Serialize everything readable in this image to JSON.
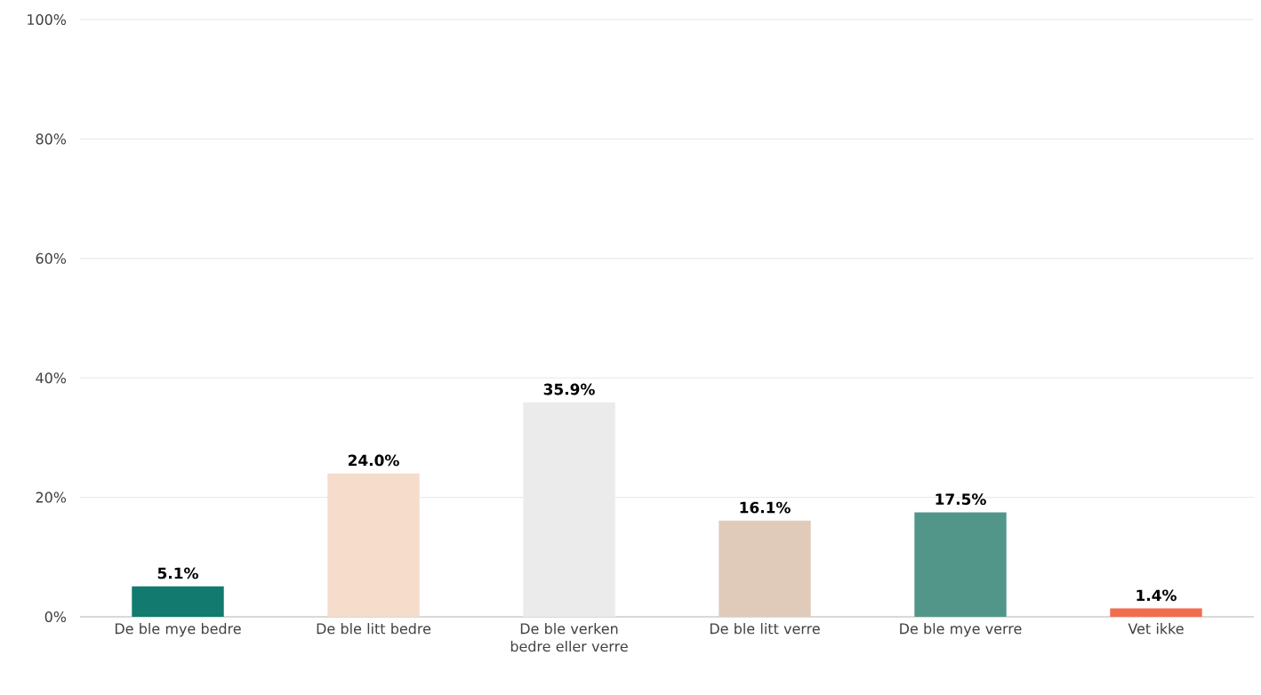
{
  "chart_data": {
    "type": "bar",
    "categories": [
      "De ble mye bedre",
      "De ble litt bedre",
      "De ble verken bedre eller verre",
      "De ble litt verre",
      "De ble mye verre",
      "Vet ikke"
    ],
    "values": [
      5.1,
      24.0,
      35.9,
      16.1,
      17.5,
      1.4
    ],
    "colors": [
      "#127a6f",
      "#f5dccb",
      "#ebebeb",
      "#e0cbbb",
      "#52968a",
      "#f26d4f"
    ],
    "value_labels": [
      "5.1%",
      "24.0%",
      "35.9%",
      "16.1%",
      "17.5%",
      "1.4%"
    ],
    "ylim": [
      0,
      100
    ],
    "yticks": [
      {
        "value": 0,
        "label": "0%"
      },
      {
        "value": 20,
        "label": "20%"
      },
      {
        "value": 40,
        "label": "40%"
      },
      {
        "value": 60,
        "label": "60%"
      },
      {
        "value": 80,
        "label": "80%"
      },
      {
        "value": 100,
        "label": "100%"
      }
    ],
    "grid": "y"
  }
}
